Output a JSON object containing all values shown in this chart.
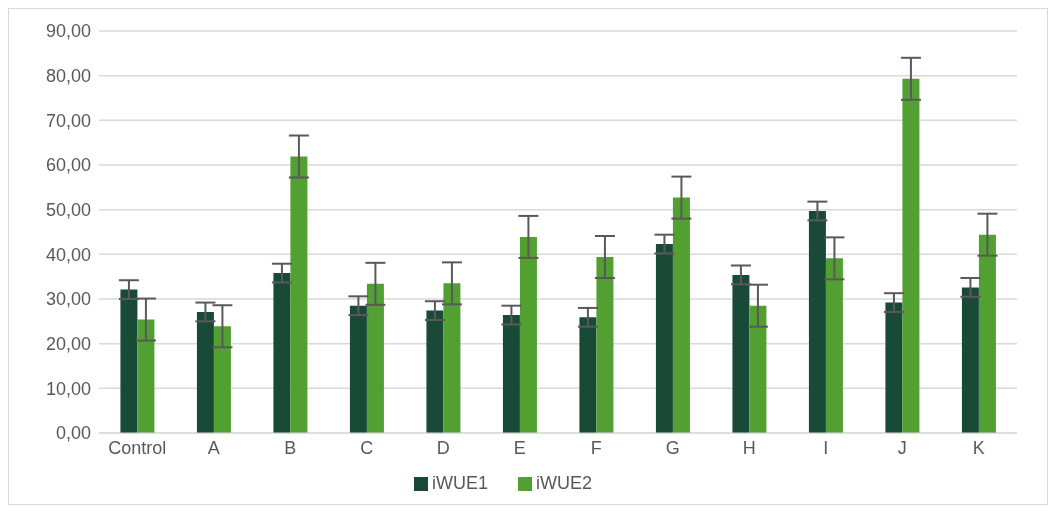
{
  "chart_data": {
    "type": "bar",
    "categories": [
      "Control",
      "A",
      "B",
      "C",
      "D",
      "E",
      "F",
      "G",
      "H",
      "I",
      "J",
      "K"
    ],
    "series": [
      {
        "name": "iWUE1",
        "color": "#194a37",
        "values": [
          32.1,
          27.1,
          35.8,
          28.5,
          27.4,
          26.4,
          25.9,
          42.3,
          35.4,
          49.7,
          29.2,
          32.6
        ],
        "errors": [
          2.1,
          2.1,
          2.1,
          2.1,
          2.1,
          2.1,
          2.1,
          2.1,
          2.1,
          2.1,
          2.1,
          2.1
        ]
      },
      {
        "name": "iWUE2",
        "color": "#52a032",
        "values": [
          25.4,
          23.9,
          61.9,
          33.4,
          33.5,
          43.9,
          39.4,
          52.7,
          28.5,
          39.1,
          79.3,
          44.4
        ],
        "errors": [
          4.7,
          4.7,
          4.7,
          4.7,
          4.7,
          4.7,
          4.7,
          4.7,
          4.7,
          4.7,
          4.7,
          4.7
        ]
      }
    ],
    "ylim": [
      0,
      90
    ],
    "yticks": [
      {
        "value": 0,
        "label": "0,00"
      },
      {
        "value": 10,
        "label": "10,00"
      },
      {
        "value": 20,
        "label": "20,00"
      },
      {
        "value": 30,
        "label": "30,00"
      },
      {
        "value": 40,
        "label": "40,00"
      },
      {
        "value": 50,
        "label": "50,00"
      },
      {
        "value": 60,
        "label": "60,00"
      },
      {
        "value": 70,
        "label": "70,00"
      },
      {
        "value": 80,
        "label": "80,00"
      },
      {
        "value": 90,
        "label": "90,00"
      }
    ],
    "grid": "y",
    "legend": "bottom"
  }
}
